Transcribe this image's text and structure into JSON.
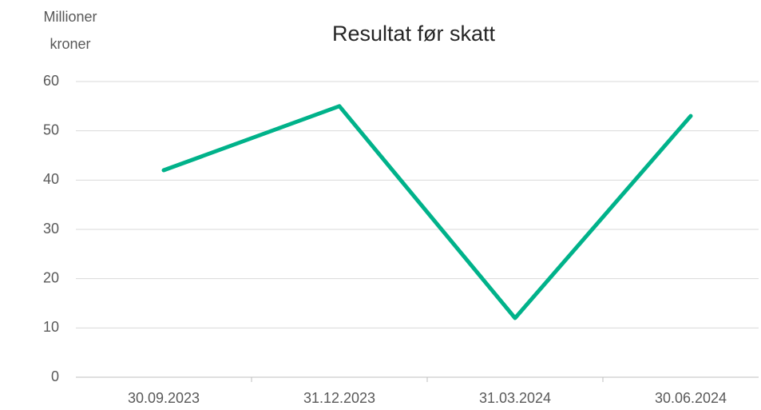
{
  "chart_data": {
    "type": "line",
    "title": "Resultat før skatt",
    "ylabel": [
      "Millioner",
      "kroner"
    ],
    "categories": [
      "30.09.2023",
      "31.12.2023",
      "31.03.2024",
      "30.06.2024"
    ],
    "values": [
      42,
      55,
      12,
      53
    ],
    "color": "#00b28a",
    "ylim": [
      0,
      60
    ],
    "yticks": [
      0,
      10,
      20,
      30,
      40,
      50,
      60
    ],
    "grid": true
  }
}
